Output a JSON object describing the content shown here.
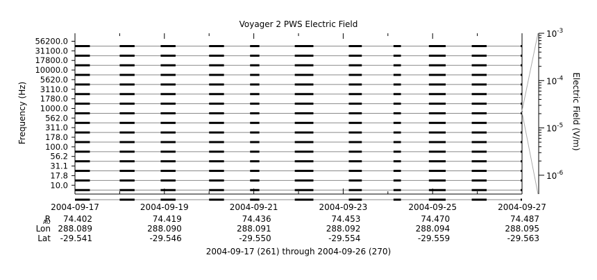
{
  "chart_data": {
    "type": "line",
    "title": "Voyager 2 PWS Electric Field",
    "ylabel": "Frequency (Hz)",
    "y2label": "Electric Field (V/m)",
    "footer": "2004-09-17 (261) through 2004-09-26 (270)",
    "channels": [
      "56200.0",
      "31100.0",
      "17800.0",
      "10000.0",
      "5620.0",
      "3110.0",
      "1780.0",
      "1000.0",
      "562.0",
      "311.0",
      "178.0",
      "100.0",
      "56.2",
      "31.1",
      "17.8",
      "10.0"
    ],
    "x_range": [
      "2004-09-17",
      "2004-09-27"
    ],
    "x_ticks": [
      "2004-09-17",
      "2004-09-19",
      "2004-09-21",
      "2004-09-23",
      "2004-09-25",
      "2004-09-27"
    ],
    "colorbar": {
      "scale": "log",
      "range": [
        4e-07,
        0.001
      ],
      "ticks": [
        "10^-3",
        "10^-4",
        "10^-5",
        "10^-6"
      ]
    },
    "ephemeris": {
      "rows": [
        {
          "label": "R",
          "sub": "AU",
          "values": [
            "74.402",
            "74.419",
            "74.436",
            "74.453",
            "74.470",
            "74.487"
          ]
        },
        {
          "label": "Lon",
          "sub": "",
          "values": [
            "288.089",
            "288.090",
            "288.091",
            "288.092",
            "288.094",
            "288.095"
          ]
        },
        {
          "label": "Lat",
          "sub": "",
          "values": [
            "-29.541",
            "-29.546",
            "-29.550",
            "-29.554",
            "-29.559",
            "-29.563"
          ]
        }
      ]
    },
    "data_segments": [
      {
        "start": "2004-09-17T00:00",
        "end": "2004-09-17T08:00"
      },
      {
        "start": "2004-09-18T00:00",
        "end": "2004-09-18T08:00"
      },
      {
        "start": "2004-09-18T22:00",
        "end": "2004-09-19T06:00"
      },
      {
        "start": "2004-09-20T00:00",
        "end": "2004-09-20T08:00"
      },
      {
        "start": "2004-09-20T22:00",
        "end": "2004-09-21T03:00"
      },
      {
        "start": "2004-09-21T22:00",
        "end": "2004-09-22T08:00"
      },
      {
        "start": "2004-09-23T03:00",
        "end": "2004-09-23T10:00"
      },
      {
        "start": "2004-09-24T03:00",
        "end": "2004-09-24T07:00"
      },
      {
        "start": "2004-09-24T22:00",
        "end": "2004-09-25T07:00"
      },
      {
        "start": "2004-09-25T21:00",
        "end": "2004-09-26T05:00"
      }
    ]
  }
}
